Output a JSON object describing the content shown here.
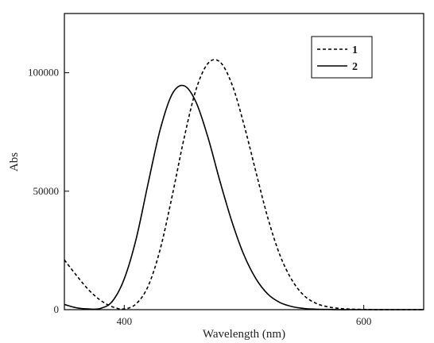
{
  "chart_data": {
    "type": "line",
    "title": "",
    "xlabel": "Wavelength (nm)",
    "ylabel": "Abs",
    "xlim": [
      350,
      650
    ],
    "ylim": [
      0,
      125000
    ],
    "x_ticks": [
      400,
      600
    ],
    "x_tick_labels": [
      "400",
      "600"
    ],
    "y_ticks": [
      0,
      50000,
      100000
    ],
    "y_tick_labels": [
      "0",
      "50000",
      "100000"
    ],
    "grid": false,
    "legend": "top-right",
    "series": [
      {
        "name": "1",
        "style": "dashed",
        "color": "#000000",
        "x": [
          350,
          360,
          370,
          380,
          390,
          400,
          410,
          420,
          430,
          440,
          450,
          460,
          470,
          480,
          490,
          500,
          510,
          520,
          530,
          540,
          550,
          560,
          570,
          580,
          590,
          600,
          610,
          620,
          630,
          640,
          650
        ],
        "y": [
          21000,
          14500,
          8500,
          4000,
          1200,
          300,
          2500,
          10000,
          25500,
          48000,
          72500,
          93000,
          104000,
          104500,
          95000,
          78000,
          58000,
          38500,
          23000,
          12500,
          6000,
          2700,
          1200,
          500,
          200,
          100,
          0,
          0,
          0,
          0,
          0
        ]
      },
      {
        "name": "2",
        "style": "solid",
        "color": "#000000",
        "x": [
          350,
          360,
          370,
          380,
          390,
          400,
          410,
          420,
          430,
          440,
          450,
          460,
          470,
          480,
          490,
          500,
          510,
          520,
          530,
          540,
          550,
          560,
          570,
          580,
          590,
          600,
          610,
          620,
          630,
          640,
          650
        ],
        "y": [
          2200,
          800,
          300,
          500,
          3500,
          13000,
          30000,
          53500,
          76000,
          91000,
          94500,
          87500,
          72500,
          54000,
          37000,
          23000,
          13000,
          6500,
          3000,
          1300,
          500,
          200,
          100,
          0,
          0,
          0,
          0,
          0,
          0,
          0,
          0
        ]
      }
    ]
  }
}
